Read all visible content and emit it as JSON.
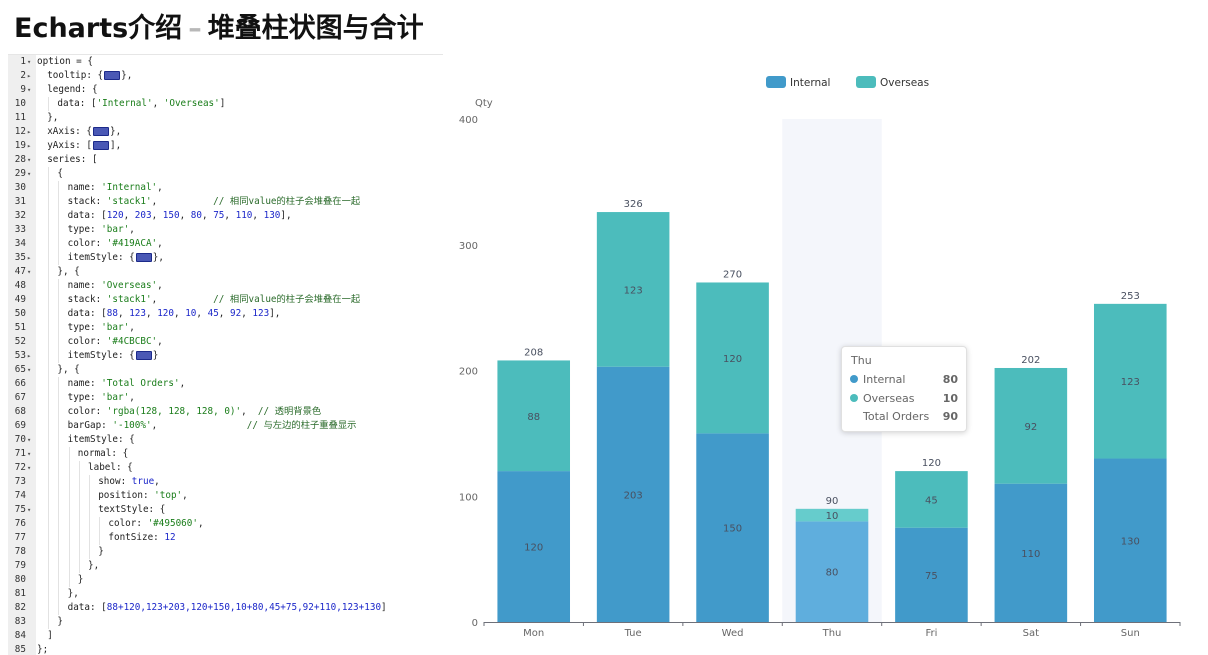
{
  "header": {
    "title_prefix": "Echarts介绍",
    "title_dash": "–",
    "title_suffix": "堆叠柱状图与合计"
  },
  "code": {
    "lines": [
      {
        "n": "1",
        "f": "▾",
        "d": 0,
        "t": [
          [
            "k",
            "option = {"
          ]
        ]
      },
      {
        "n": "2",
        "f": "▸",
        "d": 1,
        "t": [
          [
            "k",
            "tooltip: {"
          ],
          [
            "fold",
            ""
          ],
          [
            "k",
            "},"
          ]
        ]
      },
      {
        "n": "9",
        "f": "▾",
        "d": 1,
        "t": [
          [
            "k",
            "legend: {"
          ]
        ]
      },
      {
        "n": "10",
        "f": "",
        "d": 2,
        "t": [
          [
            "k",
            "data: ["
          ],
          [
            "s",
            "'Internal'"
          ],
          [
            "k",
            ", "
          ],
          [
            "s",
            "'Overseas'"
          ],
          [
            "k",
            "]"
          ]
        ]
      },
      {
        "n": "11",
        "f": "",
        "d": 1,
        "t": [
          [
            "k",
            "},"
          ]
        ]
      },
      {
        "n": "12",
        "f": "▸",
        "d": 1,
        "t": [
          [
            "k",
            "xAxis: {"
          ],
          [
            "fold",
            ""
          ],
          [
            "k",
            "},"
          ]
        ]
      },
      {
        "n": "19",
        "f": "▸",
        "d": 1,
        "t": [
          [
            "k",
            "yAxis: ["
          ],
          [
            "fold",
            ""
          ],
          [
            "k",
            "],"
          ]
        ]
      },
      {
        "n": "28",
        "f": "▾",
        "d": 1,
        "t": [
          [
            "k",
            "series: ["
          ]
        ]
      },
      {
        "n": "29",
        "f": "▾",
        "d": 2,
        "t": [
          [
            "k",
            "{"
          ]
        ]
      },
      {
        "n": "30",
        "f": "",
        "d": 3,
        "t": [
          [
            "k",
            "name: "
          ],
          [
            "s",
            "'Internal'"
          ],
          [
            "k",
            ","
          ]
        ]
      },
      {
        "n": "31",
        "f": "",
        "d": 3,
        "t": [
          [
            "k",
            "stack: "
          ],
          [
            "s",
            "'stack1'"
          ],
          [
            "k",
            ",          "
          ],
          [
            "c",
            "// 相同value的柱子会堆叠在一起"
          ]
        ]
      },
      {
        "n": "32",
        "f": "",
        "d": 3,
        "t": [
          [
            "k",
            "data: ["
          ],
          [
            "n",
            "120"
          ],
          [
            "k",
            ", "
          ],
          [
            "n",
            "203"
          ],
          [
            "k",
            ", "
          ],
          [
            "n",
            "150"
          ],
          [
            "k",
            ", "
          ],
          [
            "n",
            "80"
          ],
          [
            "k",
            ", "
          ],
          [
            "n",
            "75"
          ],
          [
            "k",
            ", "
          ],
          [
            "n",
            "110"
          ],
          [
            "k",
            ", "
          ],
          [
            "n",
            "130"
          ],
          [
            "k",
            "],"
          ]
        ]
      },
      {
        "n": "33",
        "f": "",
        "d": 3,
        "t": [
          [
            "k",
            "type: "
          ],
          [
            "s",
            "'bar'"
          ],
          [
            "k",
            ","
          ]
        ]
      },
      {
        "n": "34",
        "f": "",
        "d": 3,
        "t": [
          [
            "k",
            "color: "
          ],
          [
            "s",
            "'#419ACA'"
          ],
          [
            "k",
            ","
          ]
        ]
      },
      {
        "n": "35",
        "f": "▸",
        "d": 3,
        "t": [
          [
            "k",
            "itemStyle: {"
          ],
          [
            "fold",
            ""
          ],
          [
            "k",
            "},"
          ]
        ]
      },
      {
        "n": "47",
        "f": "▾",
        "d": 2,
        "t": [
          [
            "k",
            "}, {"
          ]
        ]
      },
      {
        "n": "48",
        "f": "",
        "d": 3,
        "t": [
          [
            "k",
            "name: "
          ],
          [
            "s",
            "'Overseas'"
          ],
          [
            "k",
            ","
          ]
        ]
      },
      {
        "n": "49",
        "f": "",
        "d": 3,
        "t": [
          [
            "k",
            "stack: "
          ],
          [
            "s",
            "'stack1'"
          ],
          [
            "k",
            ",          "
          ],
          [
            "c",
            "// 相同value的柱子会堆叠在一起"
          ]
        ]
      },
      {
        "n": "50",
        "f": "",
        "d": 3,
        "t": [
          [
            "k",
            "data: ["
          ],
          [
            "n",
            "88"
          ],
          [
            "k",
            ", "
          ],
          [
            "n",
            "123"
          ],
          [
            "k",
            ", "
          ],
          [
            "n",
            "120"
          ],
          [
            "k",
            ", "
          ],
          [
            "n",
            "10"
          ],
          [
            "k",
            ", "
          ],
          [
            "n",
            "45"
          ],
          [
            "k",
            ", "
          ],
          [
            "n",
            "92"
          ],
          [
            "k",
            ", "
          ],
          [
            "n",
            "123"
          ],
          [
            "k",
            "],"
          ]
        ]
      },
      {
        "n": "51",
        "f": "",
        "d": 3,
        "t": [
          [
            "k",
            "type: "
          ],
          [
            "s",
            "'bar'"
          ],
          [
            "k",
            ","
          ]
        ]
      },
      {
        "n": "52",
        "f": "",
        "d": 3,
        "t": [
          [
            "k",
            "color: "
          ],
          [
            "s",
            "'#4CBCBC'"
          ],
          [
            "k",
            ","
          ]
        ]
      },
      {
        "n": "53",
        "f": "▸",
        "d": 3,
        "t": [
          [
            "k",
            "itemStyle: {"
          ],
          [
            "fold",
            ""
          ],
          [
            "k",
            "}"
          ]
        ]
      },
      {
        "n": "65",
        "f": "▾",
        "d": 2,
        "t": [
          [
            "k",
            "}, {"
          ]
        ]
      },
      {
        "n": "66",
        "f": "",
        "d": 3,
        "t": [
          [
            "k",
            "name: "
          ],
          [
            "s",
            "'Total Orders'"
          ],
          [
            "k",
            ","
          ]
        ]
      },
      {
        "n": "67",
        "f": "",
        "d": 3,
        "t": [
          [
            "k",
            "type: "
          ],
          [
            "s",
            "'bar'"
          ],
          [
            "k",
            ","
          ]
        ]
      },
      {
        "n": "68",
        "f": "",
        "d": 3,
        "t": [
          [
            "k",
            "color: "
          ],
          [
            "s",
            "'rgba(128, 128, 128, 0)'"
          ],
          [
            "k",
            ",  "
          ],
          [
            "c",
            "// 透明背景色"
          ]
        ]
      },
      {
        "n": "69",
        "f": "",
        "d": 3,
        "t": [
          [
            "k",
            "barGap: "
          ],
          [
            "s",
            "'-100%'"
          ],
          [
            "k",
            ",                "
          ],
          [
            "c",
            "// 与左边的柱子重叠显示"
          ]
        ]
      },
      {
        "n": "70",
        "f": "▾",
        "d": 3,
        "t": [
          [
            "k",
            "itemStyle: {"
          ]
        ]
      },
      {
        "n": "71",
        "f": "▾",
        "d": 4,
        "t": [
          [
            "k",
            "normal: {"
          ]
        ]
      },
      {
        "n": "72",
        "f": "▾",
        "d": 5,
        "t": [
          [
            "k",
            "label: {"
          ]
        ]
      },
      {
        "n": "73",
        "f": "",
        "d": 6,
        "t": [
          [
            "k",
            "show: "
          ],
          [
            "w",
            "true"
          ],
          [
            "k",
            ","
          ]
        ]
      },
      {
        "n": "74",
        "f": "",
        "d": 6,
        "t": [
          [
            "k",
            "position: "
          ],
          [
            "s",
            "'top'"
          ],
          [
            "k",
            ","
          ]
        ]
      },
      {
        "n": "75",
        "f": "▾",
        "d": 6,
        "t": [
          [
            "k",
            "textStyle: {"
          ]
        ]
      },
      {
        "n": "76",
        "f": "",
        "d": 7,
        "t": [
          [
            "k",
            "color: "
          ],
          [
            "s",
            "'#495060'"
          ],
          [
            "k",
            ","
          ]
        ]
      },
      {
        "n": "77",
        "f": "",
        "d": 7,
        "t": [
          [
            "k",
            "fontSize: "
          ],
          [
            "n",
            "12"
          ]
        ]
      },
      {
        "n": "78",
        "f": "",
        "d": 6,
        "t": [
          [
            "k",
            "}"
          ]
        ]
      },
      {
        "n": "79",
        "f": "",
        "d": 5,
        "t": [
          [
            "k",
            "},"
          ]
        ]
      },
      {
        "n": "80",
        "f": "",
        "d": 4,
        "t": [
          [
            "k",
            "}"
          ]
        ]
      },
      {
        "n": "81",
        "f": "",
        "d": 3,
        "t": [
          [
            "k",
            "},"
          ]
        ]
      },
      {
        "n": "82",
        "f": "",
        "d": 3,
        "t": [
          [
            "k",
            "data: ["
          ],
          [
            "n",
            "88+120,123+203,120+150,10+80,45+75,92+110,123+130"
          ],
          [
            "k",
            "]"
          ]
        ]
      },
      {
        "n": "83",
        "f": "",
        "d": 2,
        "t": [
          [
            "k",
            "}"
          ]
        ]
      },
      {
        "n": "84",
        "f": "",
        "d": 1,
        "t": [
          [
            "k",
            "]"
          ]
        ]
      },
      {
        "n": "85",
        "f": "",
        "d": 0,
        "t": [
          [
            "k",
            "};"
          ]
        ]
      }
    ]
  },
  "chart_data": {
    "type": "bar",
    "stacked": true,
    "categories": [
      "Mon",
      "Tue",
      "Wed",
      "Thu",
      "Fri",
      "Sat",
      "Sun"
    ],
    "series": [
      {
        "name": "Internal",
        "color": "#419ACA",
        "values": [
          120,
          203,
          150,
          80,
          75,
          110,
          130
        ]
      },
      {
        "name": "Overseas",
        "color": "#4CBCBC",
        "values": [
          88,
          123,
          120,
          10,
          45,
          92,
          123
        ]
      }
    ],
    "totals": [
      208,
      326,
      270,
      90,
      120,
      202,
      253
    ],
    "ylabel": "Qty",
    "ylim": [
      0,
      400
    ],
    "yticks": [
      "0",
      "100",
      "200",
      "300",
      "400"
    ],
    "legend_position": "top-center",
    "grid": false,
    "highlighted_category": "Thu",
    "highlight_color": "#419ACA",
    "highlight_color_light": "#5FAEDD",
    "highlight_overseas_light": "#66CCCC",
    "label_color": "#495060"
  },
  "tooltip": {
    "title": "Thu",
    "rows": [
      {
        "label": "Internal",
        "value": "80",
        "color": "#419ACA"
      },
      {
        "label": "Overseas",
        "value": "10",
        "color": "#4CBCBC"
      },
      {
        "label": "Total Orders",
        "value": "90",
        "color": ""
      }
    ]
  }
}
